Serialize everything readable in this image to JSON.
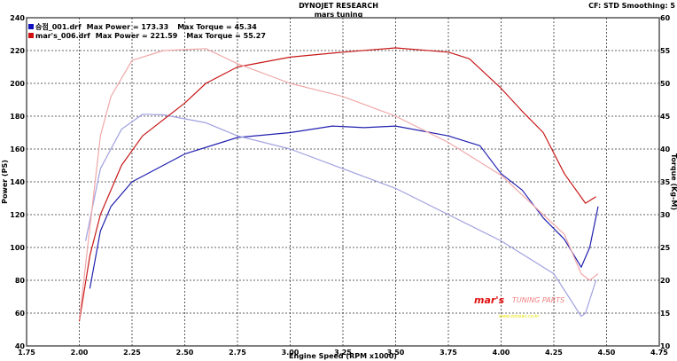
{
  "header": {
    "title": "DYNOJET RESEARCH",
    "subtitle": "mars tuning",
    "settings": "CF: STD  Smoothing: 5"
  },
  "legend": [
    {
      "file": "승점_001.drf",
      "power": "Max Power = 173.33",
      "torque": "Max Torque = 45.34",
      "color": "#1010c0"
    },
    {
      "file": "mar's_006.drf",
      "power": "Max Power = 221.59",
      "torque": "Max Torque = 55.27",
      "color": "#d01010"
    }
  ],
  "watermark": {
    "logo": "mar's",
    "text": "TUNING PARTS",
    "url": "www.zonean.co.kr"
  },
  "chart_data": {
    "type": "line",
    "xlabel": "Engine Speed (RPM x1000)",
    "ylabel": "Power (PS)",
    "y2label": "Torque (Kg-M)",
    "xlim": [
      1.75,
      4.75
    ],
    "ylim": [
      40,
      240
    ],
    "y2lim": [
      10,
      60
    ],
    "grid": true,
    "xticks": [
      "1.75",
      "2.00",
      "2.25",
      "2.50",
      "2.75",
      "3.00",
      "3.25",
      "3.50",
      "3.75",
      "4.00",
      "4.25",
      "4.50",
      "4.75"
    ],
    "yticks": [
      "40",
      "60",
      "80",
      "100",
      "120",
      "140",
      "160",
      "180",
      "200",
      "220",
      "240"
    ],
    "y2ticks": [
      "10",
      "15",
      "20",
      "25",
      "30",
      "35",
      "40",
      "45",
      "50",
      "55",
      "60"
    ],
    "series": [
      {
        "name": "승점_001 Power",
        "axis": "left",
        "color": "#2020b0",
        "x": [
          2.05,
          2.1,
          2.15,
          2.25,
          2.5,
          2.75,
          3.0,
          3.2,
          3.35,
          3.5,
          3.75,
          3.9,
          4.0,
          4.1,
          4.2,
          4.3,
          4.38,
          4.42,
          4.46
        ],
        "y": [
          75,
          110,
          125,
          140,
          157,
          167,
          170,
          174,
          173,
          174,
          168,
          162,
          145,
          135,
          118,
          105,
          88,
          100,
          125
        ]
      },
      {
        "name": "승점_001 Torque",
        "axis": "right",
        "color": "#a0a0e0",
        "x": [
          2.03,
          2.1,
          2.2,
          2.3,
          2.4,
          2.6,
          2.75,
          3.0,
          3.25,
          3.5,
          3.75,
          4.0,
          4.25,
          4.38,
          4.4,
          4.45
        ],
        "y": [
          26,
          37,
          43,
          45.3,
          45.2,
          44,
          42,
          40,
          37,
          34,
          30,
          26,
          21,
          14.5,
          15,
          20
        ]
      },
      {
        "name": "mar's_006 Power",
        "axis": "left",
        "color": "#c81818",
        "x": [
          2.0,
          2.05,
          2.1,
          2.2,
          2.3,
          2.5,
          2.6,
          2.75,
          3.0,
          3.25,
          3.5,
          3.75,
          3.85,
          4.0,
          4.1,
          4.2,
          4.3,
          4.4,
          4.45
        ],
        "y": [
          55,
          95,
          120,
          150,
          168,
          188,
          200,
          210,
          216,
          219,
          221.6,
          219,
          215,
          197,
          183,
          170,
          145,
          127,
          131
        ]
      },
      {
        "name": "mar's_006 Torque",
        "axis": "right",
        "color": "#f0a8a8",
        "x": [
          2.0,
          2.05,
          2.1,
          2.15,
          2.25,
          2.4,
          2.6,
          2.75,
          3.0,
          3.25,
          3.5,
          3.75,
          4.0,
          4.2,
          4.3,
          4.38,
          4.42,
          4.46
        ],
        "y": [
          14,
          28,
          42,
          48,
          53.5,
          55,
          55.3,
          53,
          50,
          48,
          45,
          41,
          36,
          30,
          27,
          21,
          20,
          21
        ]
      }
    ]
  }
}
